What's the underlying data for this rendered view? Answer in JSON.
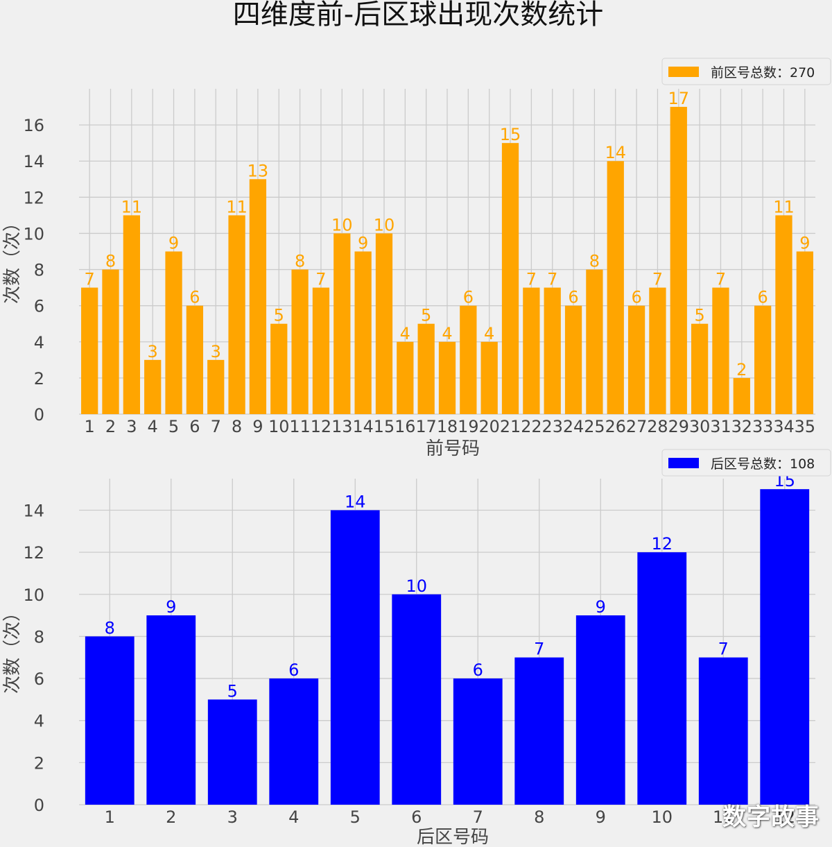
{
  "title": "四维度前-后区球出现次数统计",
  "watermark": "数字故事",
  "chart_data": [
    {
      "type": "bar",
      "categories": [
        "1",
        "2",
        "3",
        "4",
        "5",
        "6",
        "7",
        "8",
        "9",
        "10",
        "11",
        "12",
        "13",
        "14",
        "15",
        "16",
        "17",
        "18",
        "19",
        "20",
        "21",
        "22",
        "23",
        "24",
        "25",
        "26",
        "27",
        "28",
        "29",
        "30",
        "31",
        "32",
        "33",
        "34",
        "35"
      ],
      "series": [
        {
          "name": "前区号总数：270",
          "values": [
            7,
            8,
            11,
            3,
            9,
            6,
            3,
            11,
            13,
            5,
            8,
            7,
            10,
            9,
            10,
            4,
            5,
            4,
            6,
            4,
            15,
            7,
            7,
            6,
            8,
            14,
            6,
            7,
            17,
            5,
            7,
            2,
            6,
            11,
            9
          ],
          "color": "#ffa500"
        }
      ],
      "xlabel": "前号码",
      "ylabel": "次数（次）",
      "ylim": [
        0,
        18
      ],
      "yticks": [
        0,
        2,
        4,
        6,
        8,
        10,
        12,
        14,
        16
      ],
      "grid": true,
      "legend": "top-right"
    },
    {
      "type": "bar",
      "categories": [
        "1",
        "2",
        "3",
        "4",
        "5",
        "6",
        "7",
        "8",
        "9",
        "10",
        "11",
        "12"
      ],
      "series": [
        {
          "name": "后区号总数：108",
          "values": [
            8,
            9,
            5,
            6,
            14,
            10,
            6,
            7,
            9,
            12,
            7,
            15
          ],
          "color": "#0000ff"
        }
      ],
      "xlabel": "后区号码",
      "ylabel": "次数（次）",
      "ylim": [
        0,
        15.5
      ],
      "yticks": [
        0,
        2,
        4,
        6,
        8,
        10,
        12,
        14
      ],
      "grid": true,
      "legend": "top-right"
    }
  ]
}
